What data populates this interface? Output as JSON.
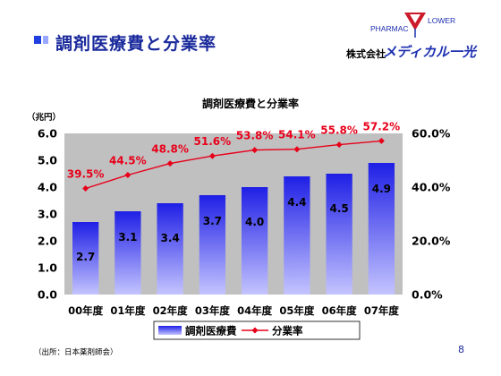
{
  "header": {
    "title": "調剤医療費と分業率"
  },
  "logo": {
    "top_left": "PHARMAC",
    "top_right": "LOWER",
    "company": "株式会社",
    "brand": "メディカル一光"
  },
  "footer": {
    "source": "（出所：日本薬剤師会）",
    "page_number": "8"
  },
  "colors": {
    "title": "#1a2a9c",
    "bar_top": "#1f1fe6",
    "bar_bottom": "#b8b8ff",
    "line": "#e8001a",
    "plot_bg": "#c0c0c0"
  },
  "chart_data": {
    "type": "bar",
    "title": "調剤医療費と分業率",
    "unit_label": "（兆円）",
    "categories": [
      "00年度",
      "01年度",
      "02年度",
      "03年度",
      "04年度",
      "05年度",
      "06年度",
      "07年度"
    ],
    "series": [
      {
        "name": "調剤医療費",
        "type": "bar",
        "axis": "left",
        "values": [
          2.7,
          3.1,
          3.4,
          3.7,
          4.0,
          4.4,
          4.5,
          4.9
        ],
        "labels": [
          "2.7",
          "3.1",
          "3.4",
          "3.7",
          "4.0",
          "4.4",
          "4.5",
          "4.9"
        ]
      },
      {
        "name": "分業率",
        "type": "line",
        "axis": "right",
        "values": [
          39.5,
          44.5,
          48.8,
          51.6,
          53.8,
          54.1,
          55.8,
          57.2
        ],
        "labels": [
          "39.5%",
          "44.5%",
          "48.8%",
          "51.6%",
          "53.8%",
          "54.1%",
          "55.8%",
          "57.2%"
        ]
      }
    ],
    "y_left": {
      "range": [
        0,
        6
      ],
      "ticks": [
        "0.0",
        "1.0",
        "2.0",
        "3.0",
        "4.0",
        "5.0",
        "6.0"
      ]
    },
    "y_right": {
      "range": [
        0,
        60
      ],
      "ticks": [
        "0.0%",
        "20.0%",
        "40.0%",
        "60.0%"
      ]
    },
    "grid": false,
    "legend": "bottom"
  }
}
